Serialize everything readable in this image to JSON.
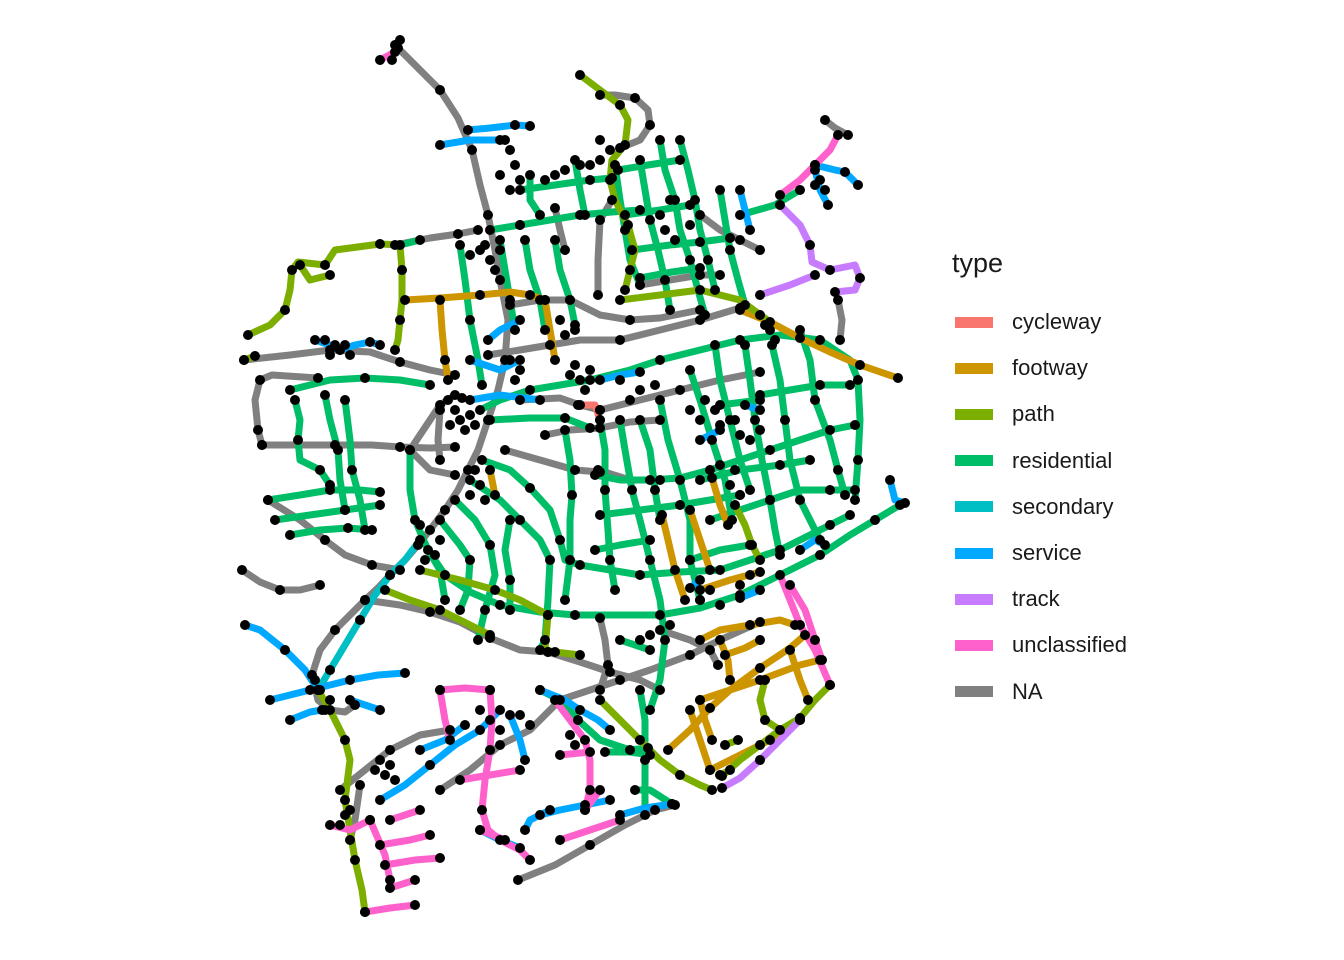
{
  "legend": {
    "title": "type",
    "items": [
      {
        "label": "cycleway",
        "color": "#F8766D"
      },
      {
        "label": "footway",
        "color": "#CD9600"
      },
      {
        "label": "path",
        "color": "#7CAE00"
      },
      {
        "label": "residential",
        "color": "#00BE67"
      },
      {
        "label": "secondary",
        "color": "#00BFC4"
      },
      {
        "label": "service",
        "color": "#00A9FF"
      },
      {
        "label": "track",
        "color": "#C77CFF"
      },
      {
        "label": "unclassified",
        "color": "#FF61CC"
      },
      {
        "label": "NA",
        "color": "#808080"
      }
    ]
  },
  "colors": {
    "node": "#000000",
    "background": "#FFFFFF"
  }
}
